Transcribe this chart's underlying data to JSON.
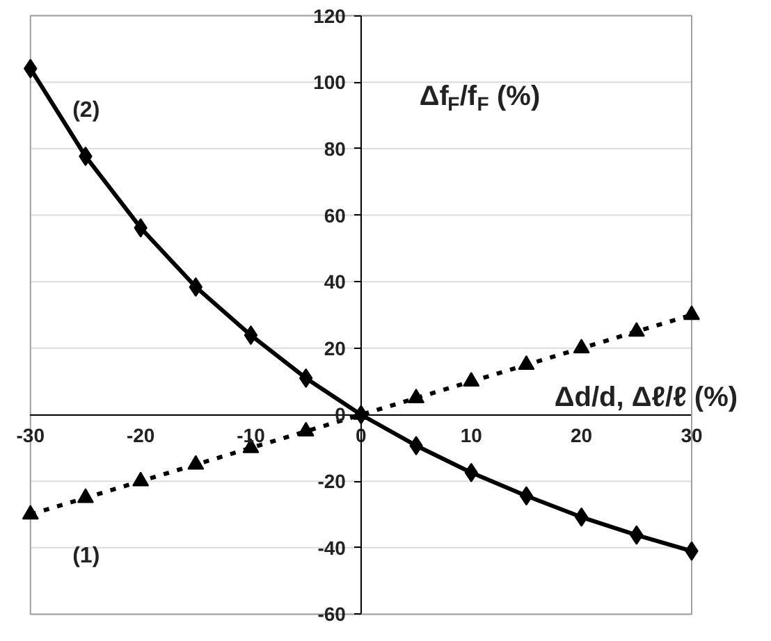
{
  "chart_data": {
    "type": "line",
    "xlabel": "Δd/d, Δℓ/ℓ (%)",
    "ylabel": "Δf$_{F}$/f$_{F}$ (%)",
    "x": [
      -30,
      -25,
      -20,
      -15,
      -10,
      -5,
      0,
      5,
      10,
      15,
      20,
      25,
      30
    ],
    "series": [
      {
        "name": "(1)",
        "color": "#000000",
        "marker": "triangle",
        "line_style": "dashed",
        "values": [
          -30,
          -25,
          -20,
          -15,
          -10,
          -5,
          0,
          5,
          10,
          15,
          20,
          25,
          30
        ]
      },
      {
        "name": "(2)",
        "color": "#000000",
        "marker": "diamond",
        "line_style": "solid",
        "values": [
          104.1,
          77.7,
          56.2,
          38.4,
          23.9,
          11.0,
          0,
          -9.3,
          -17.4,
          -24.4,
          -30.8,
          -36.2,
          -41.0
        ]
      }
    ],
    "xlim": [
      -30,
      30
    ],
    "ylim": [
      -60,
      120
    ],
    "xticks": [
      -30,
      -20,
      -10,
      0,
      10,
      20,
      30
    ],
    "yticks": [
      -60,
      -40,
      -20,
      0,
      20,
      40,
      60,
      80,
      100,
      120
    ],
    "grid": "y"
  }
}
